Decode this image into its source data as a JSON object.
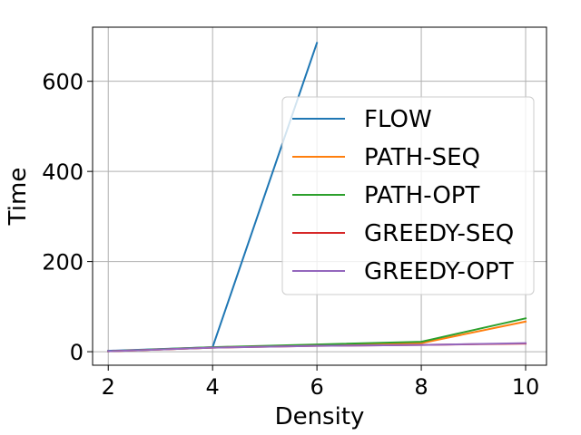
{
  "chart_data": {
    "type": "line",
    "title": "",
    "xlabel": "Density",
    "ylabel": "Time",
    "xlim": [
      1.7,
      10.4
    ],
    "ylim": [
      -30,
      720
    ],
    "xticks": [
      2,
      4,
      6,
      8,
      10
    ],
    "yticks": [
      0,
      200,
      400,
      600
    ],
    "grid": true,
    "legend_position": "center-right",
    "series": [
      {
        "name": "FLOW",
        "color": "#1f77b4",
        "x": [
          2,
          4,
          6
        ],
        "y": [
          2,
          10,
          685
        ]
      },
      {
        "name": "PATH-SEQ",
        "color": "#ff7f0e",
        "x": [
          2,
          4,
          6,
          8,
          10
        ],
        "y": [
          1,
          9,
          15,
          19,
          67
        ]
      },
      {
        "name": "PATH-OPT",
        "color": "#2ca02c",
        "x": [
          2,
          4,
          6,
          8,
          10
        ],
        "y": [
          1,
          10,
          16,
          22,
          74
        ]
      },
      {
        "name": "GREEDY-SEQ",
        "color": "#d62728",
        "x": [
          2,
          4,
          6,
          8,
          10
        ],
        "y": [
          1,
          9,
          13,
          15,
          18
        ]
      },
      {
        "name": "GREEDY-OPT",
        "color": "#9467bd",
        "x": [
          2,
          4,
          6,
          8,
          10
        ],
        "y": [
          1,
          9,
          13,
          15,
          19
        ]
      }
    ]
  }
}
